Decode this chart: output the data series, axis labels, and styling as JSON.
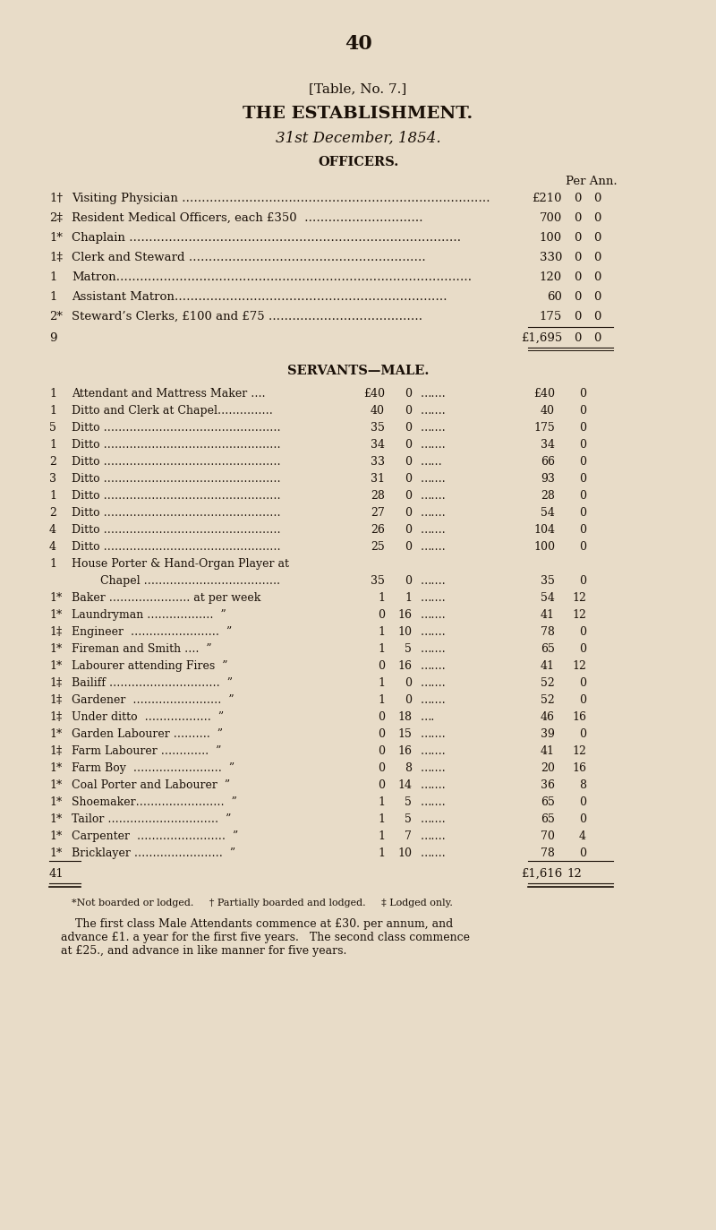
{
  "bg_color": "#e8dcc8",
  "text_color": "#1a1008",
  "page_number": "40",
  "table_ref": "[Table, No. 7.]",
  "title": "THE ESTABLISHMENT.",
  "subtitle": "31st December, 1854.",
  "section1": "OFFICERS.",
  "per_ann_label": "Per Ann.",
  "officers": [
    {
      "qty": "1†",
      "role": "Visiting Physician ……………………………………………………………………",
      "amt": "£210",
      "s": "0",
      "d": "0"
    },
    {
      "qty": "2‡",
      "role": "Resident Medical Officers, each £350  …………………………",
      "amt": "700",
      "s": "0",
      "d": "0"
    },
    {
      "qty": "1*",
      "role": "Chaplain …………………………………………………………………………",
      "amt": "100",
      "s": "0",
      "d": "0"
    },
    {
      "qty": "1‡",
      "role": "Clerk and Steward ……………………………………………………",
      "amt": "330",
      "s": "0",
      "d": "0"
    },
    {
      "qty": "1",
      "role": "Matron………………………………………………………………………………",
      "amt": "120",
      "s": "0",
      "d": "0"
    },
    {
      "qty": "1",
      "role": "Assistant Matron……………………………………………………………",
      "amt": "60",
      "s": "0",
      "d": "0"
    },
    {
      "qty": "2*",
      "role": "Steward’s Clerks, £100 and £75 …………………………………",
      "amt": "175",
      "s": "0",
      "d": "0"
    }
  ],
  "officers_total_qty": "9",
  "officers_total_amt": "£1,695",
  "officers_total_s": "0",
  "officers_total_d": "0",
  "section2": "SERVANTS—MALE.",
  "servants": [
    {
      "qty": "1",
      "role": "Attendant and Mattress Maker ….",
      "rate_l": "£40",
      "rate_r": "0",
      "dots": "…….",
      "tot_l": "£40",
      "tot_r": "0",
      "two_line": false
    },
    {
      "qty": "1",
      "role": "Ditto and Clerk at Chapel……………",
      "rate_l": "40",
      "rate_r": "0",
      "dots": "…….",
      "tot_l": "40",
      "tot_r": "0",
      "two_line": false
    },
    {
      "qty": "5",
      "role": "Ditto …………………………………………",
      "rate_l": "35",
      "rate_r": "0",
      "dots": "…….",
      "tot_l": "175",
      "tot_r": "0",
      "two_line": false
    },
    {
      "qty": "1",
      "role": "Ditto …………………………………………",
      "rate_l": "34",
      "rate_r": "0",
      "dots": "…….",
      "tot_l": "34",
      "tot_r": "0",
      "two_line": false
    },
    {
      "qty": "2",
      "role": "Ditto …………………………………………",
      "rate_l": "33",
      "rate_r": "0",
      "dots": "……",
      "tot_l": "66",
      "tot_r": "0",
      "two_line": false
    },
    {
      "qty": "3",
      "role": "Ditto …………………………………………",
      "rate_l": "31",
      "rate_r": "0",
      "dots": "…….",
      "tot_l": "93",
      "tot_r": "0",
      "two_line": false
    },
    {
      "qty": "1",
      "role": "Ditto …………………………………………",
      "rate_l": "28",
      "rate_r": "0",
      "dots": "…….",
      "tot_l": "28",
      "tot_r": "0",
      "two_line": false
    },
    {
      "qty": "2",
      "role": "Ditto …………………………………………",
      "rate_l": "27",
      "rate_r": "0",
      "dots": "…….",
      "tot_l": "54",
      "tot_r": "0",
      "two_line": false
    },
    {
      "qty": "4",
      "role": "Ditto …………………………………………",
      "rate_l": "26",
      "rate_r": "0",
      "dots": "…….",
      "tot_l": "104",
      "tot_r": "0",
      "two_line": false
    },
    {
      "qty": "4",
      "role": "Ditto …………………………………………",
      "rate_l": "25",
      "rate_r": "0",
      "dots": "…….",
      "tot_l": "100",
      "tot_r": "0",
      "two_line": false
    },
    {
      "qty": "1",
      "role": "House Porter & Hand-Organ Player at",
      "role2": "        Chapel ……………………………….",
      "rate_l": "35",
      "rate_r": "0",
      "dots": "…….",
      "tot_l": "35",
      "tot_r": "0",
      "two_line": true
    },
    {
      "qty": "1*",
      "role": "Baker …………………. at per week",
      "rate_l": "1",
      "rate_r": "1",
      "dots": "…….",
      "tot_l": "54",
      "tot_r": "12",
      "two_line": false
    },
    {
      "qty": "1*",
      "role": "Laundryman ………………  ”",
      "rate_l": "0",
      "rate_r": "16",
      "dots": "…….",
      "tot_l": "41",
      "tot_r": "12",
      "two_line": false
    },
    {
      "qty": "1‡",
      "role": "Engineer  ……………………  ”",
      "rate_l": "1",
      "rate_r": "10",
      "dots": "…….",
      "tot_l": "78",
      "tot_r": "0",
      "two_line": false
    },
    {
      "qty": "1*",
      "role": "Fireman and Smith ….  ”",
      "rate_l": "1",
      "rate_r": "5",
      "dots": "…….",
      "tot_l": "65",
      "tot_r": "0",
      "two_line": false
    },
    {
      "qty": "1*",
      "role": "Labourer attending Fires  ”",
      "rate_l": "0",
      "rate_r": "16",
      "dots": "…….",
      "tot_l": "41",
      "tot_r": "12",
      "two_line": false
    },
    {
      "qty": "1‡",
      "role": "Bailiff …………………………  ”",
      "rate_l": "1",
      "rate_r": "0",
      "dots": "…….",
      "tot_l": "52",
      "tot_r": "0",
      "two_line": false
    },
    {
      "qty": "1‡",
      "role": "Gardener  ……………………  ”",
      "rate_l": "1",
      "rate_r": "0",
      "dots": "…….",
      "tot_l": "52",
      "tot_r": "0",
      "two_line": false
    },
    {
      "qty": "1‡",
      "role": "Under ditto  ………………  ”",
      "rate_l": "0",
      "rate_r": "18",
      "dots": "….",
      "tot_l": "46",
      "tot_r": "16",
      "two_line": false
    },
    {
      "qty": "1*",
      "role": "Garden Labourer ……….  ”",
      "rate_l": "0",
      "rate_r": "15",
      "dots": "…….",
      "tot_l": "39",
      "tot_r": "0",
      "two_line": false
    },
    {
      "qty": "1‡",
      "role": "Farm Labourer ………….  ”",
      "rate_l": "0",
      "rate_r": "16",
      "dots": "…….",
      "tot_l": "41",
      "tot_r": "12",
      "two_line": false
    },
    {
      "qty": "1*",
      "role": "Farm Boy  ……………………  ”",
      "rate_l": "0",
      "rate_r": "8",
      "dots": "…….",
      "tot_l": "20",
      "tot_r": "16",
      "two_line": false
    },
    {
      "qty": "1*",
      "role": "Coal Porter and Labourer  ”",
      "rate_l": "0",
      "rate_r": "14",
      "dots": "…….",
      "tot_l": "36",
      "tot_r": "8",
      "two_line": false
    },
    {
      "qty": "1*",
      "role": "Shoemaker……………………  ”",
      "rate_l": "1",
      "rate_r": "5",
      "dots": "…….",
      "tot_l": "65",
      "tot_r": "0",
      "two_line": false
    },
    {
      "qty": "1*",
      "role": "Tailor …………………………  ”",
      "rate_l": "1",
      "rate_r": "5",
      "dots": "…….",
      "tot_l": "65",
      "tot_r": "0",
      "two_line": false
    },
    {
      "qty": "1*",
      "role": "Carpenter  ……………………  ”",
      "rate_l": "1",
      "rate_r": "7",
      "dots": "…….",
      "tot_l": "70",
      "tot_r": "4",
      "two_line": false
    },
    {
      "qty": "1*",
      "role": "Bricklayer ……………………  ”",
      "rate_l": "1",
      "rate_r": "10",
      "dots": "…….",
      "tot_l": "78",
      "tot_r": "0",
      "two_line": false
    }
  ],
  "servants_total_qty": "41",
  "servants_total_amt": "£1,616",
  "servants_total_s": "12",
  "footnote1": "*Not boarded or lodged.     † Partially boarded and lodged.     ‡ Lodged only.",
  "footnote2": "    The first class Male Attendants commence at £30. per annum, and\nadvance £1. a year for the first five years.   The second class commence\nat £25., and advance in like manner for five years."
}
